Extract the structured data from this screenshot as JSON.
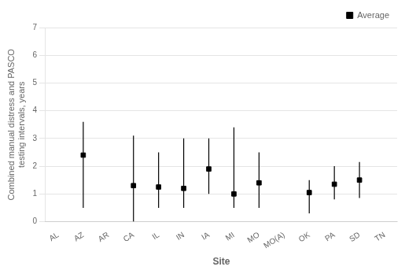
{
  "chart_data": {
    "type": "scatter",
    "categories": [
      "AL",
      "AZ",
      "AR",
      "CA",
      "IL",
      "IN",
      "IA",
      "MI",
      "MO",
      "MO(A)",
      "OK",
      "PA",
      "SD",
      "TN"
    ],
    "series": [
      {
        "name": "Average",
        "color": "black",
        "marker": "square",
        "values": [
          null,
          2.4,
          null,
          1.3,
          1.25,
          1.2,
          1.9,
          1.0,
          1.4,
          null,
          1.05,
          1.35,
          1.5,
          null
        ],
        "err_low": [
          null,
          1.9,
          null,
          1.3,
          0.75,
          0.7,
          0.9,
          0.5,
          0.9,
          null,
          0.75,
          0.55,
          0.65,
          null
        ],
        "err_high": [
          null,
          1.2,
          null,
          1.8,
          1.25,
          1.8,
          1.1,
          2.4,
          1.1,
          null,
          0.45,
          0.65,
          0.65,
          null
        ]
      }
    ],
    "xlabel": "Site",
    "ylabel": "Combined manual distress and PASCO\ntesting intervals, years",
    "ylim": [
      0,
      7
    ],
    "yticks": [
      0,
      1,
      2,
      3,
      4,
      5,
      6,
      7
    ],
    "grid": true,
    "legend": "upper right"
  }
}
